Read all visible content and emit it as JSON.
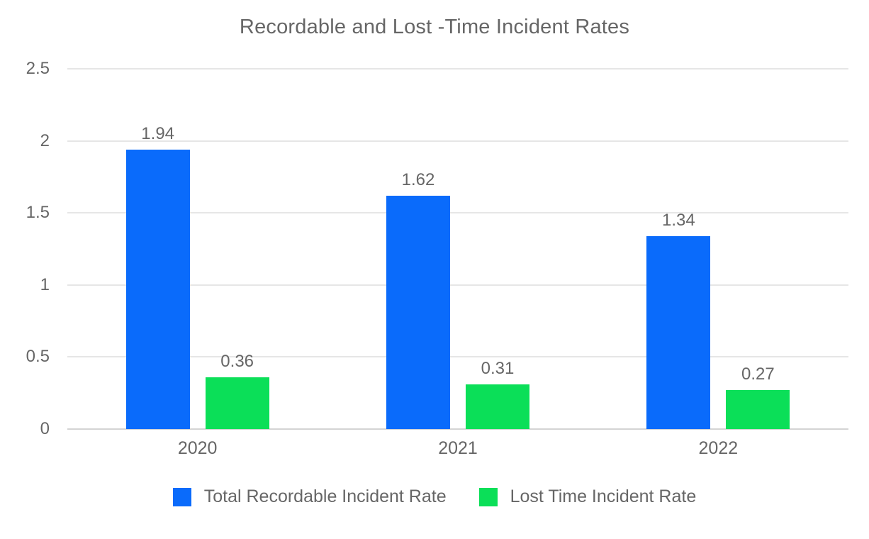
{
  "title": "Recordable and Lost -Time Incident Rates",
  "chart_data": {
    "type": "bar",
    "title": "Recordable and Lost -Time Incident Rates",
    "xlabel": "",
    "ylabel": "",
    "categories": [
      "2020",
      "2021",
      "2022"
    ],
    "series": [
      {
        "name": "Total Recordable Incident Rate",
        "color": "#0a6bfb",
        "values": [
          1.94,
          1.62,
          1.34
        ]
      },
      {
        "name": "Lost Time Incident Rate",
        "color": "#0bdf58",
        "values": [
          0.36,
          0.31,
          0.27
        ]
      }
    ],
    "y_ticks": [
      0,
      0.5,
      1,
      1.5,
      2,
      2.5
    ],
    "ylim": [
      0,
      2.5
    ],
    "grid": true,
    "value_labels": true,
    "value_label_decimals": 2,
    "legend_position": "bottom"
  },
  "colors": {
    "text": "#666666",
    "grid_line": "#e6e6e6",
    "axis_baseline": "#d4d4d4",
    "background": "#ffffff"
  }
}
